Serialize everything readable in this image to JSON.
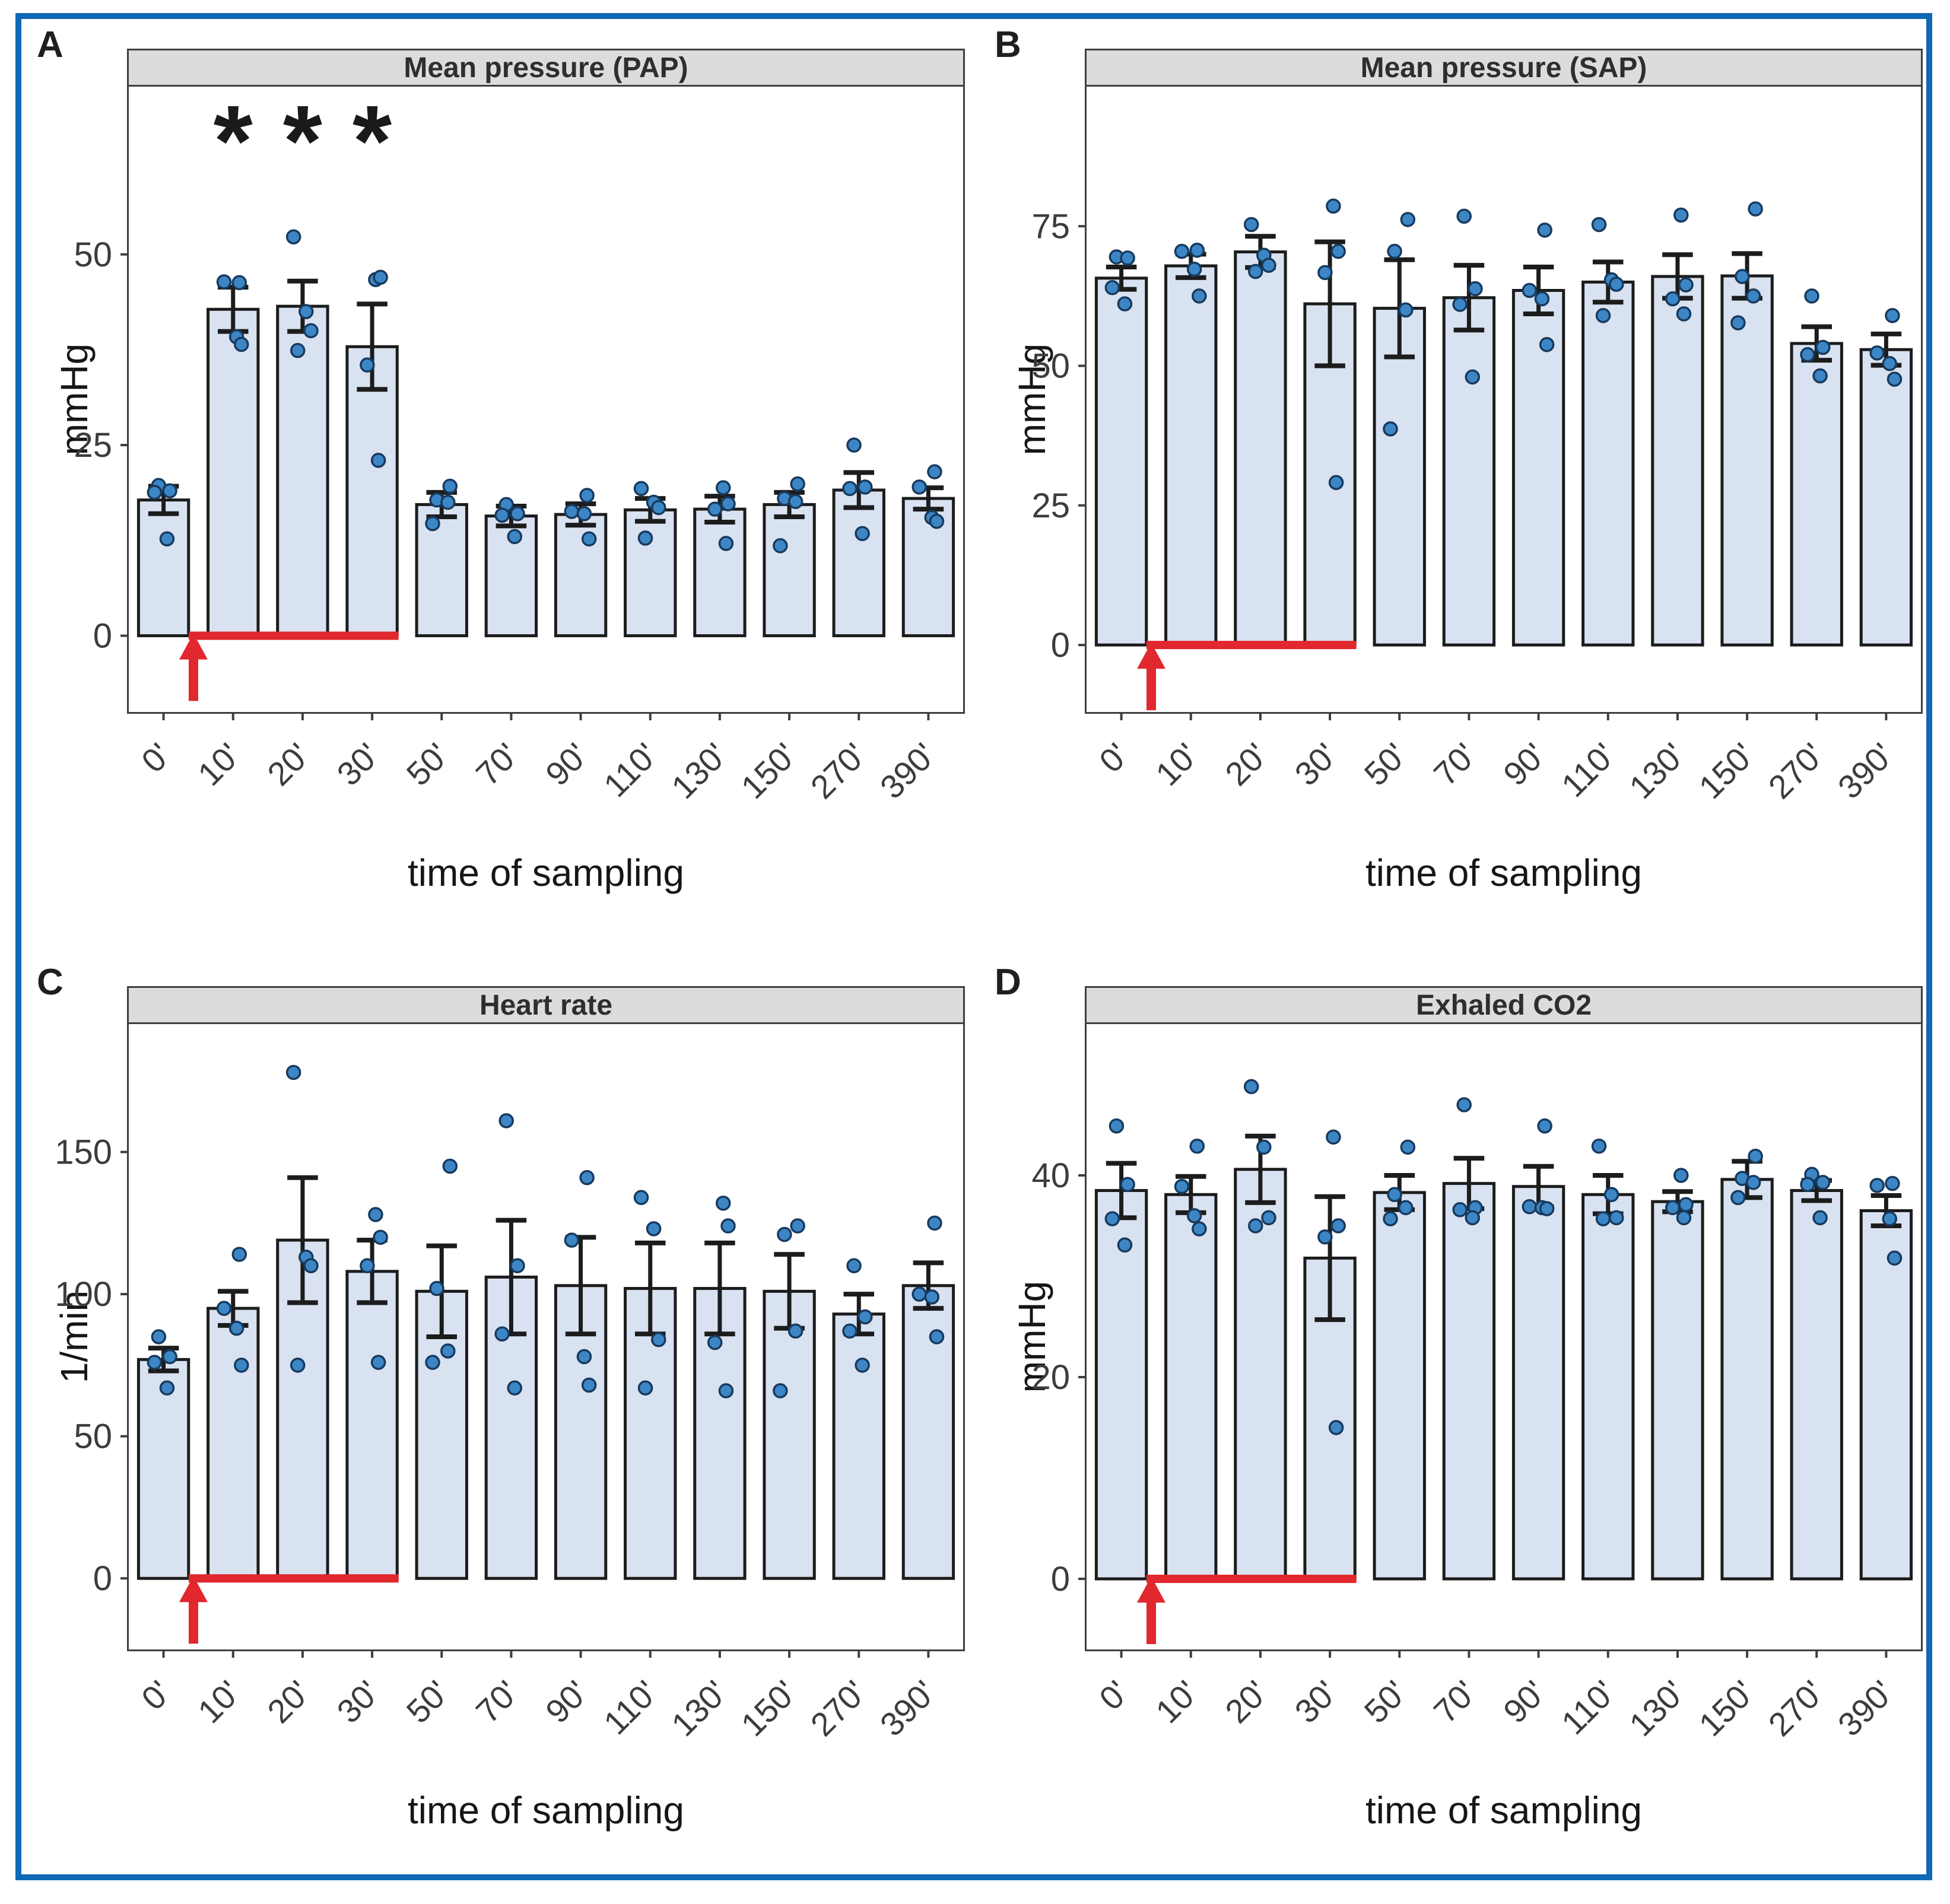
{
  "figure": {
    "border_color": "#1068b4",
    "panel_labels": [
      "A",
      "B",
      "C",
      "D"
    ],
    "bar_fill": "#d9e2f1",
    "bar_stroke": "#1c1c1c",
    "point_fill": "#3d86c5",
    "point_stroke": "#173a5e",
    "axis_text_color": "#3c3c3c",
    "title_strip_bg": "#dcdcdc"
  },
  "shared": {
    "xlabel": "time of sampling",
    "categories": [
      "0'",
      "10'",
      "20'",
      "30'",
      "50'",
      "70'",
      "90'",
      "110'",
      "130'",
      "150'",
      "270'",
      "390'"
    ],
    "treatment_marker": {
      "color": "#e0282e",
      "arrow_after_category": "0'",
      "line_end_after_category": "30'"
    }
  },
  "chart_data": [
    {
      "type": "bar",
      "title": "Mean pressure (PAP)",
      "ylabel": "mmHg",
      "xlabel": "time of sampling",
      "categories": [
        "0'",
        "10'",
        "20'",
        "30'",
        "50'",
        "70'",
        "90'",
        "110'",
        "130'",
        "150'",
        "270'",
        "390'"
      ],
      "values": [
        17.8,
        42.8,
        43.2,
        37.9,
        17.2,
        15.7,
        15.9,
        16.5,
        16.6,
        17.2,
        19.1,
        18.0
      ],
      "sem": [
        1.8,
        2.9,
        3.3,
        5.6,
        1.6,
        1.3,
        1.4,
        1.5,
        1.7,
        1.6,
        2.3,
        1.4
      ],
      "points": [
        [
          19.7,
          19.0,
          18.8,
          12.7
        ],
        [
          46.3,
          46.4,
          39.2,
          38.2
        ],
        [
          52.3,
          42.5,
          40.0,
          37.4
        ],
        [
          46.7,
          47.0,
          35.5,
          23.0
        ],
        [
          19.6,
          17.8,
          17.5,
          14.7
        ],
        [
          17.2,
          16.0,
          15.8,
          13.0
        ],
        [
          18.4,
          16.3,
          16.0,
          12.7
        ],
        [
          19.3,
          17.5,
          16.8,
          12.8
        ],
        [
          19.4,
          17.3,
          16.6,
          12.1
        ],
        [
          19.9,
          18.0,
          17.6,
          11.8
        ],
        [
          25.0,
          19.5,
          19.3,
          13.4
        ],
        [
          21.5,
          19.5,
          15.5,
          15.0
        ]
      ],
      "yticks": [
        0,
        25,
        50
      ],
      "ylim": [
        -10,
        72
      ],
      "grid": false,
      "legend": false,
      "significance": {
        "symbol": "*",
        "categories": [
          "10'",
          "20'",
          "30'"
        ]
      }
    },
    {
      "type": "bar",
      "title": "Mean pressure (SAP)",
      "ylabel": "mmHg",
      "xlabel": "time of sampling",
      "categories": [
        "0'",
        "10'",
        "20'",
        "30'",
        "50'",
        "70'",
        "90'",
        "110'",
        "130'",
        "150'",
        "270'",
        "390'"
      ],
      "values": [
        65.7,
        67.9,
        70.4,
        61.1,
        60.3,
        62.2,
        63.5,
        65.0,
        66.0,
        66.1,
        54.0,
        52.9
      ],
      "sem": [
        2.0,
        2.1,
        2.8,
        11.1,
        8.7,
        5.8,
        4.2,
        3.6,
        3.9,
        4.0,
        3.0,
        2.8
      ],
      "points": [
        [
          69.5,
          69.3,
          64.0,
          61.1
        ],
        [
          70.7,
          70.5,
          67.3,
          62.5
        ],
        [
          75.3,
          69.8,
          68.0,
          66.9
        ],
        [
          78.6,
          70.5,
          66.7,
          29.1
        ],
        [
          76.2,
          70.5,
          60.0,
          38.7
        ],
        [
          76.8,
          63.8,
          61.0,
          48.0
        ],
        [
          74.3,
          63.5,
          62.0,
          53.8
        ],
        [
          75.3,
          65.4,
          64.6,
          59.0
        ],
        [
          77.0,
          64.5,
          62.0,
          59.3
        ],
        [
          78.1,
          66.0,
          62.5,
          57.7
        ],
        [
          62.5,
          53.3,
          52.0,
          48.2
        ],
        [
          59.0,
          52.3,
          50.4,
          47.6
        ]
      ],
      "yticks": [
        0,
        25,
        50,
        75
      ],
      "ylim": [
        -12,
        100
      ],
      "grid": false,
      "legend": false,
      "significance": null
    },
    {
      "type": "bar",
      "title": "Heart rate",
      "ylabel": "1/min",
      "xlabel": "time of sampling",
      "categories": [
        "0'",
        "10'",
        "20'",
        "30'",
        "50'",
        "70'",
        "90'",
        "110'",
        "130'",
        "150'",
        "270'",
        "390'"
      ],
      "values": [
        77,
        95,
        119,
        108,
        101,
        106,
        103,
        102,
        102,
        101,
        93,
        103
      ],
      "sem": [
        4,
        6,
        22,
        11,
        16,
        20,
        17,
        16,
        16,
        13,
        7,
        8
      ],
      "points": [
        [
          85,
          78,
          76,
          67
        ],
        [
          114,
          95,
          88,
          75
        ],
        [
          178,
          113,
          110,
          75
        ],
        [
          128,
          120,
          110,
          76
        ],
        [
          145,
          102,
          80,
          76
        ],
        [
          161,
          110,
          86,
          67
        ],
        [
          141,
          119,
          78,
          68
        ],
        [
          134,
          123,
          84,
          67
        ],
        [
          132,
          124,
          83,
          66
        ],
        [
          124,
          121,
          87,
          66
        ],
        [
          110,
          92,
          87,
          75
        ],
        [
          125,
          100,
          99,
          85
        ]
      ],
      "yticks": [
        0,
        50,
        100,
        150
      ],
      "ylim": [
        -25,
        195
      ],
      "grid": false,
      "legend": false,
      "significance": null
    },
    {
      "type": "bar",
      "title": "Exhaled CO2",
      "ylabel": "mmHg",
      "xlabel": "time of sampling",
      "categories": [
        "0'",
        "10'",
        "20'",
        "30'",
        "50'",
        "70'",
        "90'",
        "110'",
        "130'",
        "150'",
        "270'",
        "390'"
      ],
      "values": [
        38.5,
        38.1,
        40.6,
        31.8,
        38.3,
        39.2,
        38.9,
        38.1,
        37.4,
        39.6,
        38.5,
        36.5
      ],
      "sem": [
        2.7,
        1.8,
        3.3,
        6.1,
        1.7,
        2.5,
        2.0,
        1.9,
        1.0,
        1.8,
        1.0,
        1.5
      ],
      "points": [
        [
          44.9,
          39.1,
          35.7,
          33.1
        ],
        [
          42.9,
          38.9,
          36.0,
          34.7
        ],
        [
          48.8,
          42.8,
          35.8,
          35.0
        ],
        [
          43.8,
          35.0,
          33.9,
          15.0
        ],
        [
          42.8,
          38.1,
          36.8,
          35.7
        ],
        [
          47.0,
          36.8,
          36.6,
          35.8
        ],
        [
          44.9,
          36.9,
          36.8,
          36.7
        ],
        [
          42.9,
          38.1,
          35.8,
          35.7
        ],
        [
          40.0,
          37.1,
          36.8,
          35.8
        ],
        [
          41.9,
          39.7,
          39.3,
          37.8
        ],
        [
          40.1,
          39.3,
          39.1,
          35.8
        ],
        [
          39.2,
          39.0,
          35.7,
          31.8
        ]
      ],
      "yticks": [
        0,
        20,
        40
      ],
      "ylim": [
        -7,
        55
      ],
      "grid": false,
      "legend": false,
      "significance": null
    }
  ]
}
